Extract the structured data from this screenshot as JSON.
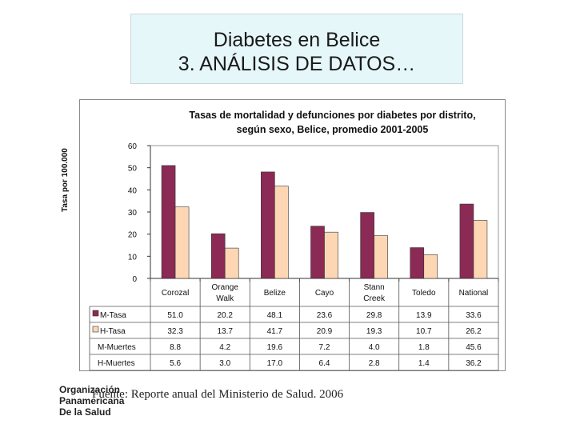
{
  "slide": {
    "title_line1": "Diabetes en Belice",
    "title_line2": "3. ANÁLISIS DE DATOS…"
  },
  "footer": {
    "org_line1": "Organización",
    "org_line2": "Panamericana",
    "org_line3": "De la Salud",
    "source": "Fuente: Reporte anual del Ministerio de Salud. 2006"
  },
  "colors": {
    "m_tasa": "#8b2a55",
    "h_tasa": "#fdd7b4",
    "bar_stroke": "#333333"
  },
  "chart_data": {
    "type": "bar",
    "title_line1": "Tasas de mortalidad y defunciones por diabetes por distrito,",
    "title_line2": "según sexo, Belice, promedio 2001-2005",
    "ylabel": "Tasa por 100.000",
    "xlabel": "",
    "ylim": [
      0,
      60
    ],
    "yticks": [
      "0",
      "10",
      "20",
      "30",
      "40",
      "50",
      "60"
    ],
    "categories": [
      [
        "Corozal"
      ],
      [
        "Orange",
        "Walk"
      ],
      [
        "Belize"
      ],
      [
        "Cayo"
      ],
      [
        "Stann",
        "Creek"
      ],
      [
        "Toledo"
      ],
      [
        "National"
      ]
    ],
    "series": [
      {
        "name": "M-Tasa",
        "plotted": true,
        "values": [
          51.0,
          20.2,
          48.1,
          23.6,
          29.8,
          13.9,
          33.6
        ],
        "labels": [
          "51.0",
          "20.2",
          "48.1",
          "23.6",
          "29.8",
          "13.9",
          "33.6"
        ]
      },
      {
        "name": "H-Tasa",
        "plotted": true,
        "values": [
          32.3,
          13.7,
          41.7,
          20.9,
          19.3,
          10.7,
          26.2
        ],
        "labels": [
          "32.3",
          "13.7",
          "41.7",
          "20.9",
          "19.3",
          "10.7",
          "26.2"
        ]
      },
      {
        "name": "M-Muertes",
        "plotted": false,
        "values": [
          8.8,
          4.2,
          19.6,
          7.2,
          4.0,
          1.8,
          45.6
        ],
        "labels": [
          "8.8",
          "4.2",
          "19.6",
          "7.2",
          "4.0",
          "1.8",
          "45.6"
        ]
      },
      {
        "name": "H-Muertes",
        "plotted": false,
        "values": [
          5.6,
          3.0,
          17.0,
          6.4,
          2.8,
          1.4,
          36.2
        ],
        "labels": [
          "5.6",
          "3.0",
          "17.0",
          "6.4",
          "2.8",
          "1.4",
          "36.2"
        ]
      }
    ]
  }
}
